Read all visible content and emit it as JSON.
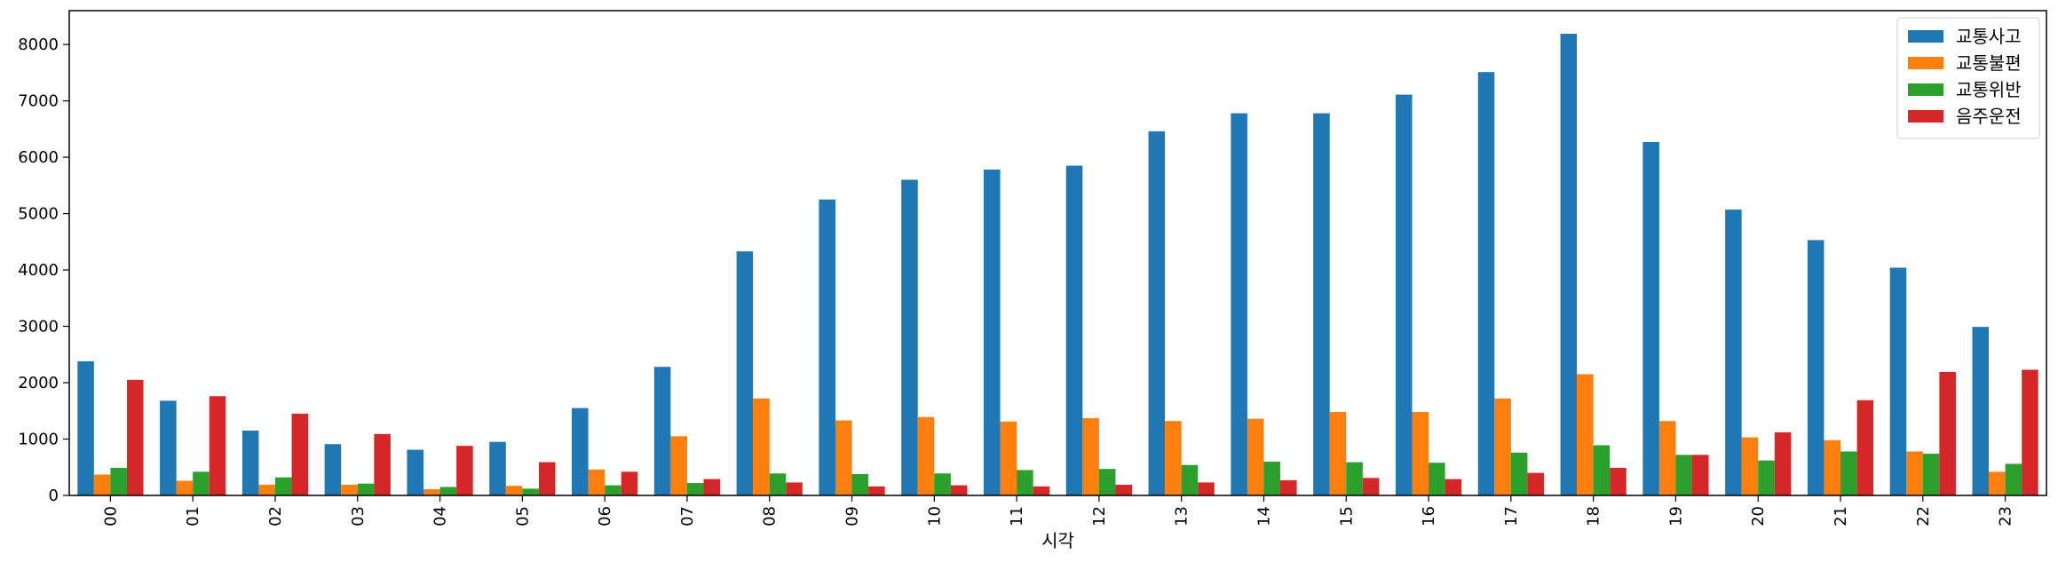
{
  "chart_data": {
    "type": "bar",
    "title": "",
    "xlabel": "시각",
    "ylabel": "",
    "ylim": [
      0,
      8600
    ],
    "yticks": [
      0,
      1000,
      2000,
      3000,
      4000,
      5000,
      6000,
      7000,
      8000
    ],
    "categories": [
      "00",
      "01",
      "02",
      "03",
      "04",
      "05",
      "06",
      "07",
      "08",
      "09",
      "10",
      "11",
      "12",
      "13",
      "14",
      "15",
      "16",
      "17",
      "18",
      "19",
      "20",
      "21",
      "22",
      "23"
    ],
    "series": [
      {
        "name": "교통사고",
        "color": "#1f77b4",
        "values": [
          2380,
          1680,
          1150,
          910,
          810,
          950,
          1550,
          2280,
          4330,
          5250,
          5600,
          5780,
          5850,
          6460,
          6780,
          6780,
          7110,
          7510,
          8190,
          6270,
          5070,
          4530,
          4040,
          2990
        ]
      },
      {
        "name": "교통불편",
        "color": "#ff7f0e",
        "values": [
          370,
          260,
          190,
          190,
          110,
          170,
          460,
          1050,
          1720,
          1330,
          1390,
          1310,
          1370,
          1320,
          1360,
          1480,
          1480,
          1720,
          2150,
          1320,
          1030,
          980,
          780,
          420
        ]
      },
      {
        "name": "교통위반",
        "color": "#2ca02c",
        "values": [
          490,
          420,
          320,
          210,
          150,
          120,
          180,
          220,
          390,
          380,
          390,
          450,
          470,
          540,
          600,
          590,
          580,
          760,
          890,
          720,
          620,
          780,
          740,
          560
        ]
      },
      {
        "name": "음주운전",
        "color": "#d62728",
        "values": [
          2050,
          1760,
          1450,
          1090,
          880,
          590,
          420,
          290,
          230,
          160,
          180,
          160,
          190,
          230,
          270,
          310,
          290,
          400,
          490,
          720,
          1120,
          1690,
          2190,
          2230
        ]
      }
    ],
    "legend_position": "top-right",
    "grid": false
  }
}
